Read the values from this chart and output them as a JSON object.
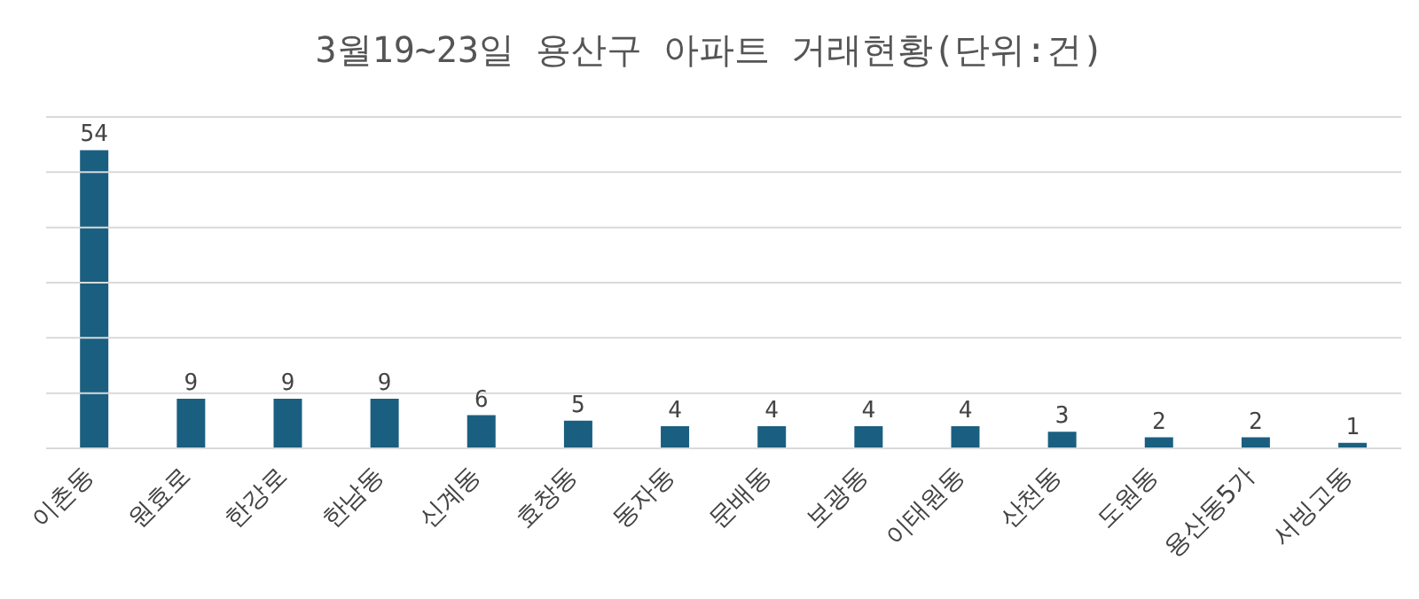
{
  "chart_data": {
    "type": "bar",
    "title": "3월19~23일 용산구 아파트 거래현황(단위:건)",
    "categories": [
      "이촌동",
      "원효로",
      "한강로",
      "한남동",
      "신계동",
      "효창동",
      "동자동",
      "문배동",
      "보광동",
      "이태원동",
      "산천동",
      "도원동",
      "용산동5가",
      "서빙고동"
    ],
    "values": [
      54,
      9,
      9,
      9,
      6,
      5,
      4,
      4,
      4,
      4,
      3,
      2,
      2,
      1
    ],
    "color": "#1b5f80",
    "ylim": [
      0,
      60
    ],
    "yticks": [
      {
        "value": 0,
        "label": null
      },
      {
        "value": 10,
        "label": null
      },
      {
        "value": 20,
        "label": null
      },
      {
        "value": 30,
        "label": null
      },
      {
        "value": 40,
        "label": null
      },
      {
        "value": 50,
        "label": null
      },
      {
        "value": 60,
        "label": null
      }
    ],
    "grid": "y",
    "tick_labels": "x",
    "data_labels": true
  }
}
